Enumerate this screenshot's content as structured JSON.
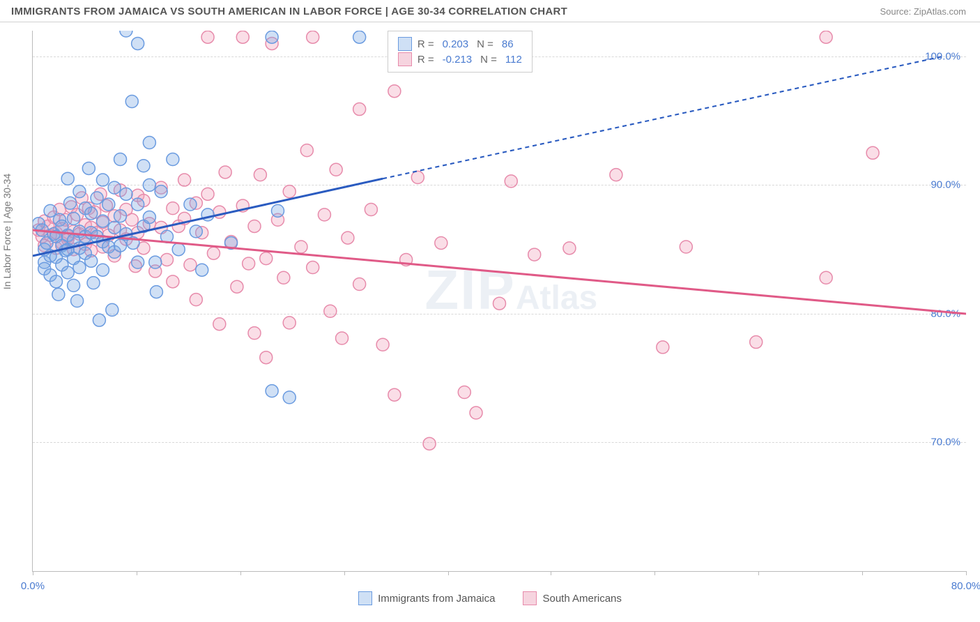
{
  "title": "IMMIGRANTS FROM JAMAICA VS SOUTH AMERICAN IN LABOR FORCE | AGE 30-34 CORRELATION CHART",
  "source": "Source: ZipAtlas.com",
  "y_axis_label": "In Labor Force | Age 30-34",
  "watermark_main": "ZIP",
  "watermark_sub": "Atlas",
  "chart": {
    "type": "scatter",
    "xlim": [
      0,
      80
    ],
    "ylim": [
      60,
      102
    ],
    "y_ticks": [
      70,
      80,
      90,
      100
    ],
    "y_tick_labels": [
      "70.0%",
      "80.0%",
      "90.0%",
      "100.0%"
    ],
    "x_ticks": [
      0,
      8.9,
      17.8,
      26.7,
      35.6,
      44.4,
      53.3,
      62.2,
      71.1,
      80
    ],
    "x_tick_labels_shown": {
      "0": "0.0%",
      "80": "80.0%"
    },
    "grid_color": "#d8d8d8",
    "axis_color": "#bbbbbb",
    "background_color": "#ffffff",
    "tick_label_color": "#4a7bd0",
    "marker_radius": 9,
    "marker_stroke_width": 1.5,
    "trend_line_width": 3,
    "trend_dash": "6,5"
  },
  "series": {
    "jamaica": {
      "label": "Immigrants from Jamaica",
      "fill_color": "rgba(120, 165, 225, 0.35)",
      "stroke_color": "#6a9be0",
      "swatch_fill": "#cfe0f5",
      "swatch_border": "#6a9be0",
      "trend_color": "#2a5bc0",
      "R": "0.203",
      "N": "86",
      "trend": {
        "x1": 0,
        "y1": 84.5,
        "x2_solid": 30,
        "y2_solid": 90.5,
        "x2": 78,
        "y2": 100
      },
      "points": [
        [
          0.5,
          87
        ],
        [
          0.8,
          86.5
        ],
        [
          1,
          85
        ],
        [
          1,
          84
        ],
        [
          1,
          83.5
        ],
        [
          1.2,
          85.5
        ],
        [
          1.5,
          88
        ],
        [
          1.5,
          84.5
        ],
        [
          1.5,
          83
        ],
        [
          1.8,
          86.2
        ],
        [
          2,
          86
        ],
        [
          2,
          84.4
        ],
        [
          2,
          82.5
        ],
        [
          2.2,
          81.5
        ],
        [
          2.3,
          87.3
        ],
        [
          2.5,
          86.8
        ],
        [
          2.5,
          85.3
        ],
        [
          2.5,
          83.8
        ],
        [
          2.8,
          84.9
        ],
        [
          3,
          90.5
        ],
        [
          3,
          86.1
        ],
        [
          3,
          85
        ],
        [
          3,
          83.2
        ],
        [
          3.2,
          88.6
        ],
        [
          3.5,
          87.4
        ],
        [
          3.5,
          85.7
        ],
        [
          3.5,
          84.3
        ],
        [
          3.5,
          82.2
        ],
        [
          3.8,
          81
        ],
        [
          4,
          89.5
        ],
        [
          4,
          86.4
        ],
        [
          4,
          85.1
        ],
        [
          4,
          83.6
        ],
        [
          4.5,
          88.2
        ],
        [
          4.5,
          86
        ],
        [
          4.5,
          84.7
        ],
        [
          4.8,
          91.3
        ],
        [
          5,
          87.8
        ],
        [
          5,
          86.3
        ],
        [
          5,
          84.1
        ],
        [
          5.2,
          82.4
        ],
        [
          5.5,
          89
        ],
        [
          5.5,
          86
        ],
        [
          5.7,
          79.5
        ],
        [
          6,
          90.4
        ],
        [
          6,
          87.2
        ],
        [
          6,
          85.6
        ],
        [
          6,
          83.4
        ],
        [
          6.5,
          88.5
        ],
        [
          6.5,
          85.2
        ],
        [
          6.8,
          80.3
        ],
        [
          7,
          89.8
        ],
        [
          7,
          86.7
        ],
        [
          7,
          84.8
        ],
        [
          7.5,
          92
        ],
        [
          7.5,
          87.6
        ],
        [
          7.5,
          85.3
        ],
        [
          8,
          102
        ],
        [
          8,
          89.3
        ],
        [
          8,
          86.2
        ],
        [
          8.5,
          96.5
        ],
        [
          8.6,
          85.5
        ],
        [
          9,
          101
        ],
        [
          9,
          88.5
        ],
        [
          9,
          84
        ],
        [
          9.5,
          91.5
        ],
        [
          9.5,
          86.8
        ],
        [
          10,
          93.3
        ],
        [
          10,
          87.5
        ],
        [
          10,
          90
        ],
        [
          10.5,
          84
        ],
        [
          10.6,
          81.7
        ],
        [
          11,
          89.5
        ],
        [
          11.5,
          86
        ],
        [
          12,
          92
        ],
        [
          12.5,
          85
        ],
        [
          13.5,
          88.5
        ],
        [
          14,
          86.4
        ],
        [
          14.5,
          83.4
        ],
        [
          15,
          87.7
        ],
        [
          17,
          85.5
        ],
        [
          20.5,
          101.5
        ],
        [
          20.5,
          74
        ],
        [
          21,
          88
        ],
        [
          22,
          73.5
        ],
        [
          28,
          101.5
        ]
      ]
    },
    "south_american": {
      "label": "South Americans",
      "fill_color": "rgba(240, 160, 185, 0.35)",
      "stroke_color": "#e78bab",
      "swatch_fill": "#f6d4df",
      "swatch_border": "#e78bab",
      "trend_color": "#e05a87",
      "R": "-0.213",
      "N": "112",
      "trend": {
        "x1": 0,
        "y1": 86.5,
        "x2_solid": 80,
        "y2_solid": 80,
        "x2": 80,
        "y2": 80
      },
      "points": [
        [
          0.5,
          86.5
        ],
        [
          0.8,
          86
        ],
        [
          1,
          85.3
        ],
        [
          1,
          87.2
        ],
        [
          1.3,
          86.8
        ],
        [
          1.5,
          86.1
        ],
        [
          1.8,
          87.5
        ],
        [
          2,
          86.3
        ],
        [
          2,
          85.1
        ],
        [
          2.3,
          88.1
        ],
        [
          2.5,
          86.6
        ],
        [
          2.5,
          85.5
        ],
        [
          2.8,
          87.3
        ],
        [
          3,
          86
        ],
        [
          3,
          85.8
        ],
        [
          3.3,
          88.3
        ],
        [
          3.5,
          86.4
        ],
        [
          3.5,
          85
        ],
        [
          3.8,
          87.7
        ],
        [
          4,
          86.2
        ],
        [
          4.2,
          89
        ],
        [
          4.5,
          86.9
        ],
        [
          4.5,
          85.4
        ],
        [
          4.8,
          88.2
        ],
        [
          5,
          86.7
        ],
        [
          5,
          84.9
        ],
        [
          5.3,
          87.9
        ],
        [
          5.5,
          86.3
        ],
        [
          5.8,
          89.3
        ],
        [
          6,
          87.1
        ],
        [
          6,
          85.2
        ],
        [
          6.3,
          88.4
        ],
        [
          6.5,
          86.1
        ],
        [
          7,
          87.6
        ],
        [
          7,
          84.5
        ],
        [
          7.5,
          89.6
        ],
        [
          7.5,
          86.5
        ],
        [
          8,
          88.1
        ],
        [
          8,
          85.8
        ],
        [
          8.5,
          87.3
        ],
        [
          8.8,
          83.7
        ],
        [
          9,
          89.2
        ],
        [
          9,
          86.3
        ],
        [
          9.5,
          88.8
        ],
        [
          9.5,
          85.1
        ],
        [
          10,
          87
        ],
        [
          10.5,
          83.3
        ],
        [
          11,
          89.8
        ],
        [
          11,
          86.7
        ],
        [
          11.5,
          84.2
        ],
        [
          12,
          88.2
        ],
        [
          12,
          82.5
        ],
        [
          12.5,
          86.8
        ],
        [
          13,
          90.4
        ],
        [
          13,
          87.4
        ],
        [
          13.5,
          83.8
        ],
        [
          14,
          88.6
        ],
        [
          14,
          81.1
        ],
        [
          14.5,
          86.3
        ],
        [
          15,
          101.5
        ],
        [
          15,
          89.3
        ],
        [
          15.5,
          84.7
        ],
        [
          16,
          87.9
        ],
        [
          16,
          79.2
        ],
        [
          16.5,
          91
        ],
        [
          17,
          85.6
        ],
        [
          17.5,
          82.1
        ],
        [
          18,
          101.5
        ],
        [
          18,
          88.4
        ],
        [
          18.5,
          83.9
        ],
        [
          19,
          86.8
        ],
        [
          19,
          78.5
        ],
        [
          19.5,
          90.8
        ],
        [
          20,
          84.3
        ],
        [
          20,
          76.6
        ],
        [
          20.5,
          101
        ],
        [
          21,
          87.3
        ],
        [
          21.5,
          82.8
        ],
        [
          22,
          89.5
        ],
        [
          22,
          79.3
        ],
        [
          23,
          85.2
        ],
        [
          23.5,
          92.7
        ],
        [
          24,
          101.5
        ],
        [
          24,
          83.6
        ],
        [
          25,
          87.7
        ],
        [
          25.5,
          80.2
        ],
        [
          26,
          91.2
        ],
        [
          26.5,
          78.1
        ],
        [
          27,
          85.9
        ],
        [
          28,
          95.9
        ],
        [
          28,
          82.3
        ],
        [
          29,
          88.1
        ],
        [
          30,
          77.6
        ],
        [
          31,
          97.3
        ],
        [
          31,
          73.7
        ],
        [
          32,
          84.2
        ],
        [
          33,
          90.6
        ],
        [
          34,
          69.9
        ],
        [
          35,
          85.5
        ],
        [
          37,
          73.9
        ],
        [
          38,
          72.3
        ],
        [
          40,
          80.8
        ],
        [
          41,
          90.3
        ],
        [
          43,
          84.6
        ],
        [
          46,
          85.1
        ],
        [
          50,
          90.8
        ],
        [
          54,
          77.4
        ],
        [
          56,
          85.2
        ],
        [
          62,
          77.8
        ],
        [
          68,
          101.5
        ],
        [
          68,
          82.8
        ],
        [
          72,
          92.5
        ]
      ]
    }
  },
  "stats_legend": {
    "r_label": "R  =",
    "n_label": "N  ="
  }
}
